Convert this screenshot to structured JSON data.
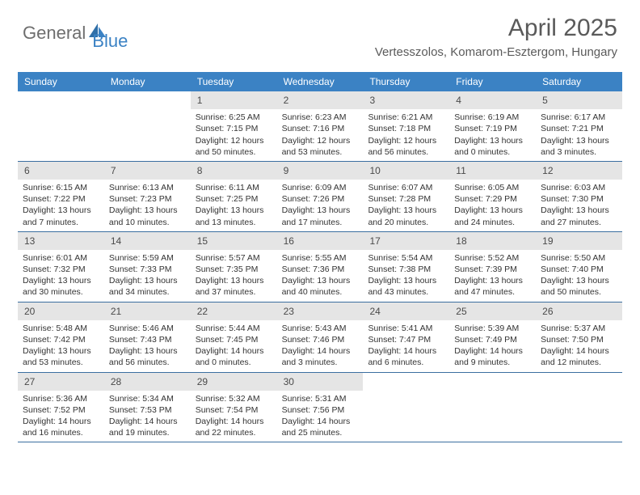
{
  "logo": {
    "text1": "General",
    "text2": "Blue"
  },
  "title": "April 2025",
  "location": "Vertesszolos, Komarom-Esztergom, Hungary",
  "colors": {
    "header_bg": "#3b82c4",
    "header_text": "#ffffff",
    "daynum_bg": "#e5e5e5",
    "row_border": "#3b6fa0",
    "logo_gray": "#6e6e6e",
    "logo_blue": "#3b82c4"
  },
  "day_labels": [
    "Sunday",
    "Monday",
    "Tuesday",
    "Wednesday",
    "Thursday",
    "Friday",
    "Saturday"
  ],
  "weeks": [
    [
      {
        "n": "",
        "sr": "",
        "ss": "",
        "dl": ""
      },
      {
        "n": "",
        "sr": "",
        "ss": "",
        "dl": ""
      },
      {
        "n": "1",
        "sr": "Sunrise: 6:25 AM",
        "ss": "Sunset: 7:15 PM",
        "dl": "Daylight: 12 hours and 50 minutes."
      },
      {
        "n": "2",
        "sr": "Sunrise: 6:23 AM",
        "ss": "Sunset: 7:16 PM",
        "dl": "Daylight: 12 hours and 53 minutes."
      },
      {
        "n": "3",
        "sr": "Sunrise: 6:21 AM",
        "ss": "Sunset: 7:18 PM",
        "dl": "Daylight: 12 hours and 56 minutes."
      },
      {
        "n": "4",
        "sr": "Sunrise: 6:19 AM",
        "ss": "Sunset: 7:19 PM",
        "dl": "Daylight: 13 hours and 0 minutes."
      },
      {
        "n": "5",
        "sr": "Sunrise: 6:17 AM",
        "ss": "Sunset: 7:21 PM",
        "dl": "Daylight: 13 hours and 3 minutes."
      }
    ],
    [
      {
        "n": "6",
        "sr": "Sunrise: 6:15 AM",
        "ss": "Sunset: 7:22 PM",
        "dl": "Daylight: 13 hours and 7 minutes."
      },
      {
        "n": "7",
        "sr": "Sunrise: 6:13 AM",
        "ss": "Sunset: 7:23 PM",
        "dl": "Daylight: 13 hours and 10 minutes."
      },
      {
        "n": "8",
        "sr": "Sunrise: 6:11 AM",
        "ss": "Sunset: 7:25 PM",
        "dl": "Daylight: 13 hours and 13 minutes."
      },
      {
        "n": "9",
        "sr": "Sunrise: 6:09 AM",
        "ss": "Sunset: 7:26 PM",
        "dl": "Daylight: 13 hours and 17 minutes."
      },
      {
        "n": "10",
        "sr": "Sunrise: 6:07 AM",
        "ss": "Sunset: 7:28 PM",
        "dl": "Daylight: 13 hours and 20 minutes."
      },
      {
        "n": "11",
        "sr": "Sunrise: 6:05 AM",
        "ss": "Sunset: 7:29 PM",
        "dl": "Daylight: 13 hours and 24 minutes."
      },
      {
        "n": "12",
        "sr": "Sunrise: 6:03 AM",
        "ss": "Sunset: 7:30 PM",
        "dl": "Daylight: 13 hours and 27 minutes."
      }
    ],
    [
      {
        "n": "13",
        "sr": "Sunrise: 6:01 AM",
        "ss": "Sunset: 7:32 PM",
        "dl": "Daylight: 13 hours and 30 minutes."
      },
      {
        "n": "14",
        "sr": "Sunrise: 5:59 AM",
        "ss": "Sunset: 7:33 PM",
        "dl": "Daylight: 13 hours and 34 minutes."
      },
      {
        "n": "15",
        "sr": "Sunrise: 5:57 AM",
        "ss": "Sunset: 7:35 PM",
        "dl": "Daylight: 13 hours and 37 minutes."
      },
      {
        "n": "16",
        "sr": "Sunrise: 5:55 AM",
        "ss": "Sunset: 7:36 PM",
        "dl": "Daylight: 13 hours and 40 minutes."
      },
      {
        "n": "17",
        "sr": "Sunrise: 5:54 AM",
        "ss": "Sunset: 7:38 PM",
        "dl": "Daylight: 13 hours and 43 minutes."
      },
      {
        "n": "18",
        "sr": "Sunrise: 5:52 AM",
        "ss": "Sunset: 7:39 PM",
        "dl": "Daylight: 13 hours and 47 minutes."
      },
      {
        "n": "19",
        "sr": "Sunrise: 5:50 AM",
        "ss": "Sunset: 7:40 PM",
        "dl": "Daylight: 13 hours and 50 minutes."
      }
    ],
    [
      {
        "n": "20",
        "sr": "Sunrise: 5:48 AM",
        "ss": "Sunset: 7:42 PM",
        "dl": "Daylight: 13 hours and 53 minutes."
      },
      {
        "n": "21",
        "sr": "Sunrise: 5:46 AM",
        "ss": "Sunset: 7:43 PM",
        "dl": "Daylight: 13 hours and 56 minutes."
      },
      {
        "n": "22",
        "sr": "Sunrise: 5:44 AM",
        "ss": "Sunset: 7:45 PM",
        "dl": "Daylight: 14 hours and 0 minutes."
      },
      {
        "n": "23",
        "sr": "Sunrise: 5:43 AM",
        "ss": "Sunset: 7:46 PM",
        "dl": "Daylight: 14 hours and 3 minutes."
      },
      {
        "n": "24",
        "sr": "Sunrise: 5:41 AM",
        "ss": "Sunset: 7:47 PM",
        "dl": "Daylight: 14 hours and 6 minutes."
      },
      {
        "n": "25",
        "sr": "Sunrise: 5:39 AM",
        "ss": "Sunset: 7:49 PM",
        "dl": "Daylight: 14 hours and 9 minutes."
      },
      {
        "n": "26",
        "sr": "Sunrise: 5:37 AM",
        "ss": "Sunset: 7:50 PM",
        "dl": "Daylight: 14 hours and 12 minutes."
      }
    ],
    [
      {
        "n": "27",
        "sr": "Sunrise: 5:36 AM",
        "ss": "Sunset: 7:52 PM",
        "dl": "Daylight: 14 hours and 16 minutes."
      },
      {
        "n": "28",
        "sr": "Sunrise: 5:34 AM",
        "ss": "Sunset: 7:53 PM",
        "dl": "Daylight: 14 hours and 19 minutes."
      },
      {
        "n": "29",
        "sr": "Sunrise: 5:32 AM",
        "ss": "Sunset: 7:54 PM",
        "dl": "Daylight: 14 hours and 22 minutes."
      },
      {
        "n": "30",
        "sr": "Sunrise: 5:31 AM",
        "ss": "Sunset: 7:56 PM",
        "dl": "Daylight: 14 hours and 25 minutes."
      },
      {
        "n": "",
        "sr": "",
        "ss": "",
        "dl": ""
      },
      {
        "n": "",
        "sr": "",
        "ss": "",
        "dl": ""
      },
      {
        "n": "",
        "sr": "",
        "ss": "",
        "dl": ""
      }
    ]
  ]
}
